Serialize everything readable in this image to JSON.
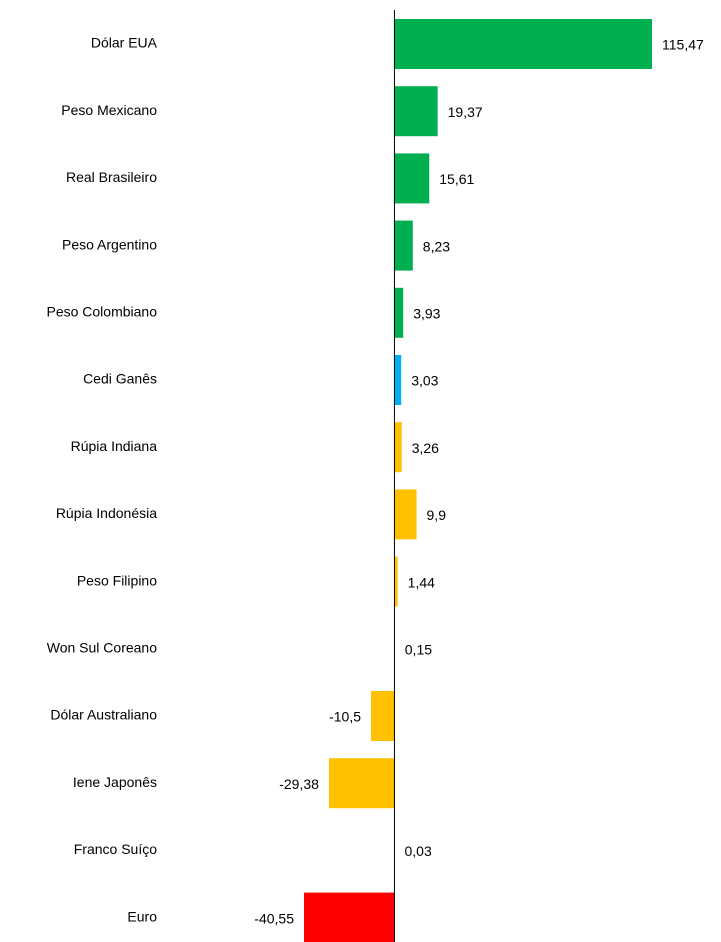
{
  "chart_data": {
    "type": "barh",
    "categories": [
      "Dólar EUA",
      "Peso Mexicano",
      "Real Brasileiro",
      "Peso Argentino",
      "Peso Colombiano",
      "Cedi Ganês",
      "Rúpia Indiana",
      "Rúpia Indonésia",
      "Peso Filipino",
      "Won Sul Coreano",
      "Dólar Australiano",
      "Iene Japonês",
      "Franco Suíço",
      "Euro"
    ],
    "values": [
      115.47,
      19.37,
      15.61,
      8.23,
      3.93,
      3.03,
      3.26,
      9.9,
      1.44,
      0.15,
      -10.5,
      -29.38,
      0.03,
      -40.55
    ],
    "value_labels": [
      "115,47",
      "19,37",
      "15,61",
      "8,23",
      "3,93",
      "3,03",
      "3,26",
      "9,9",
      "1,44",
      "0,15",
      "-10,5",
      "-29,38",
      "0,03",
      "-40,55"
    ],
    "colors": [
      "#00b050",
      "#00b050",
      "#00b050",
      "#00b050",
      "#00b050",
      "#00b0f0",
      "#ffc000",
      "#ffc000",
      "#ffc000",
      "#ffc000",
      "#ffc000",
      "#ffc000",
      "#ffc000",
      "#ff0000"
    ]
  }
}
